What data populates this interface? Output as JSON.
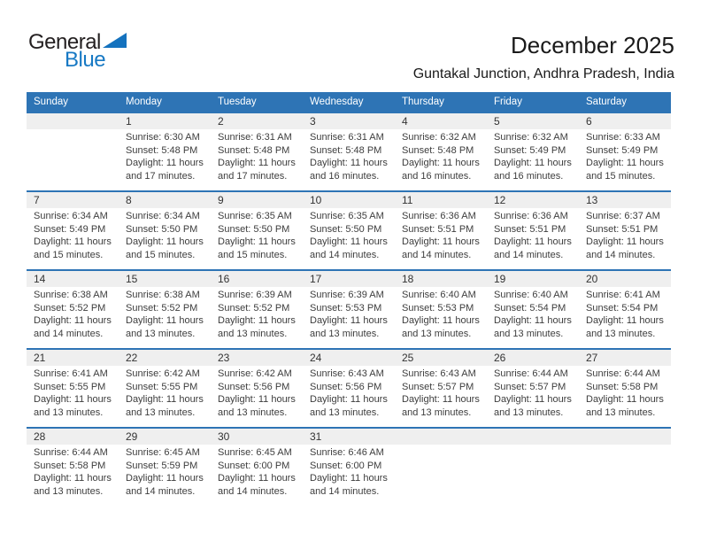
{
  "logo": {
    "general": "General",
    "blue": "Blue"
  },
  "header": {
    "title": "December 2025",
    "subtitle": "Guntakal Junction, Andhra Pradesh, India"
  },
  "colors": {
    "header_bg": "#2e74b5",
    "week_divider": "#2e74b5",
    "day_band_bg": "#efefef",
    "logo_blue": "#1779c4",
    "text": "#3d3d3d"
  },
  "weekdays": [
    "Sunday",
    "Monday",
    "Tuesday",
    "Wednesday",
    "Thursday",
    "Friday",
    "Saturday"
  ],
  "weeks": [
    [
      {},
      {
        "day": "1",
        "sunrise": "Sunrise: 6:30 AM",
        "sunset": "Sunset: 5:48 PM",
        "daylight": "Daylight: 11 hours and 17 minutes."
      },
      {
        "day": "2",
        "sunrise": "Sunrise: 6:31 AM",
        "sunset": "Sunset: 5:48 PM",
        "daylight": "Daylight: 11 hours and 17 minutes."
      },
      {
        "day": "3",
        "sunrise": "Sunrise: 6:31 AM",
        "sunset": "Sunset: 5:48 PM",
        "daylight": "Daylight: 11 hours and 16 minutes."
      },
      {
        "day": "4",
        "sunrise": "Sunrise: 6:32 AM",
        "sunset": "Sunset: 5:48 PM",
        "daylight": "Daylight: 11 hours and 16 minutes."
      },
      {
        "day": "5",
        "sunrise": "Sunrise: 6:32 AM",
        "sunset": "Sunset: 5:49 PM",
        "daylight": "Daylight: 11 hours and 16 minutes."
      },
      {
        "day": "6",
        "sunrise": "Sunrise: 6:33 AM",
        "sunset": "Sunset: 5:49 PM",
        "daylight": "Daylight: 11 hours and 15 minutes."
      }
    ],
    [
      {
        "day": "7",
        "sunrise": "Sunrise: 6:34 AM",
        "sunset": "Sunset: 5:49 PM",
        "daylight": "Daylight: 11 hours and 15 minutes."
      },
      {
        "day": "8",
        "sunrise": "Sunrise: 6:34 AM",
        "sunset": "Sunset: 5:50 PM",
        "daylight": "Daylight: 11 hours and 15 minutes."
      },
      {
        "day": "9",
        "sunrise": "Sunrise: 6:35 AM",
        "sunset": "Sunset: 5:50 PM",
        "daylight": "Daylight: 11 hours and 15 minutes."
      },
      {
        "day": "10",
        "sunrise": "Sunrise: 6:35 AM",
        "sunset": "Sunset: 5:50 PM",
        "daylight": "Daylight: 11 hours and 14 minutes."
      },
      {
        "day": "11",
        "sunrise": "Sunrise: 6:36 AM",
        "sunset": "Sunset: 5:51 PM",
        "daylight": "Daylight: 11 hours and 14 minutes."
      },
      {
        "day": "12",
        "sunrise": "Sunrise: 6:36 AM",
        "sunset": "Sunset: 5:51 PM",
        "daylight": "Daylight: 11 hours and 14 minutes."
      },
      {
        "day": "13",
        "sunrise": "Sunrise: 6:37 AM",
        "sunset": "Sunset: 5:51 PM",
        "daylight": "Daylight: 11 hours and 14 minutes."
      }
    ],
    [
      {
        "day": "14",
        "sunrise": "Sunrise: 6:38 AM",
        "sunset": "Sunset: 5:52 PM",
        "daylight": "Daylight: 11 hours and 14 minutes."
      },
      {
        "day": "15",
        "sunrise": "Sunrise: 6:38 AM",
        "sunset": "Sunset: 5:52 PM",
        "daylight": "Daylight: 11 hours and 13 minutes."
      },
      {
        "day": "16",
        "sunrise": "Sunrise: 6:39 AM",
        "sunset": "Sunset: 5:52 PM",
        "daylight": "Daylight: 11 hours and 13 minutes."
      },
      {
        "day": "17",
        "sunrise": "Sunrise: 6:39 AM",
        "sunset": "Sunset: 5:53 PM",
        "daylight": "Daylight: 11 hours and 13 minutes."
      },
      {
        "day": "18",
        "sunrise": "Sunrise: 6:40 AM",
        "sunset": "Sunset: 5:53 PM",
        "daylight": "Daylight: 11 hours and 13 minutes."
      },
      {
        "day": "19",
        "sunrise": "Sunrise: 6:40 AM",
        "sunset": "Sunset: 5:54 PM",
        "daylight": "Daylight: 11 hours and 13 minutes."
      },
      {
        "day": "20",
        "sunrise": "Sunrise: 6:41 AM",
        "sunset": "Sunset: 5:54 PM",
        "daylight": "Daylight: 11 hours and 13 minutes."
      }
    ],
    [
      {
        "day": "21",
        "sunrise": "Sunrise: 6:41 AM",
        "sunset": "Sunset: 5:55 PM",
        "daylight": "Daylight: 11 hours and 13 minutes."
      },
      {
        "day": "22",
        "sunrise": "Sunrise: 6:42 AM",
        "sunset": "Sunset: 5:55 PM",
        "daylight": "Daylight: 11 hours and 13 minutes."
      },
      {
        "day": "23",
        "sunrise": "Sunrise: 6:42 AM",
        "sunset": "Sunset: 5:56 PM",
        "daylight": "Daylight: 11 hours and 13 minutes."
      },
      {
        "day": "24",
        "sunrise": "Sunrise: 6:43 AM",
        "sunset": "Sunset: 5:56 PM",
        "daylight": "Daylight: 11 hours and 13 minutes."
      },
      {
        "day": "25",
        "sunrise": "Sunrise: 6:43 AM",
        "sunset": "Sunset: 5:57 PM",
        "daylight": "Daylight: 11 hours and 13 minutes."
      },
      {
        "day": "26",
        "sunrise": "Sunrise: 6:44 AM",
        "sunset": "Sunset: 5:57 PM",
        "daylight": "Daylight: 11 hours and 13 minutes."
      },
      {
        "day": "27",
        "sunrise": "Sunrise: 6:44 AM",
        "sunset": "Sunset: 5:58 PM",
        "daylight": "Daylight: 11 hours and 13 minutes."
      }
    ],
    [
      {
        "day": "28",
        "sunrise": "Sunrise: 6:44 AM",
        "sunset": "Sunset: 5:58 PM",
        "daylight": "Daylight: 11 hours and 13 minutes."
      },
      {
        "day": "29",
        "sunrise": "Sunrise: 6:45 AM",
        "sunset": "Sunset: 5:59 PM",
        "daylight": "Daylight: 11 hours and 14 minutes."
      },
      {
        "day": "30",
        "sunrise": "Sunrise: 6:45 AM",
        "sunset": "Sunset: 6:00 PM",
        "daylight": "Daylight: 11 hours and 14 minutes."
      },
      {
        "day": "31",
        "sunrise": "Sunrise: 6:46 AM",
        "sunset": "Sunset: 6:00 PM",
        "daylight": "Daylight: 11 hours and 14 minutes."
      },
      {},
      {},
      {}
    ]
  ]
}
